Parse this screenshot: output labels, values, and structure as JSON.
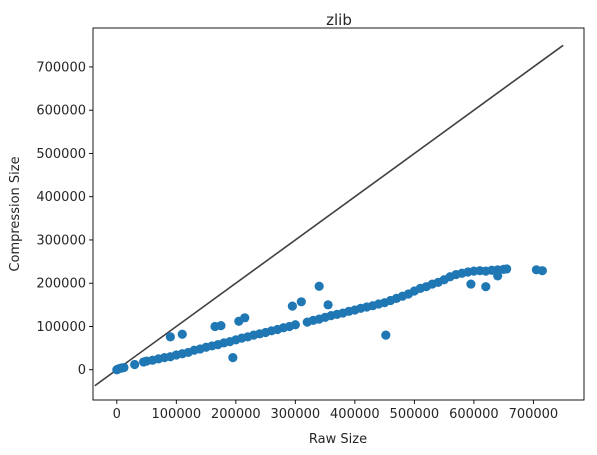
{
  "chart_data": {
    "type": "scatter",
    "title": "zlib",
    "xlabel": "Raw Size",
    "ylabel": "Compression Size",
    "xlim": [
      -40000,
      785000
    ],
    "ylim": [
      -70000,
      790000
    ],
    "xticks": [
      0,
      100000,
      200000,
      300000,
      400000,
      500000,
      600000,
      700000
    ],
    "yticks": [
      0,
      100000,
      200000,
      300000,
      400000,
      500000,
      600000,
      700000
    ],
    "xtick_labels": [
      "0",
      "100000",
      "200000",
      "300000",
      "400000",
      "500000",
      "600000",
      "700000"
    ],
    "ytick_labels": [
      "0",
      "100000",
      "200000",
      "300000",
      "400000",
      "500000",
      "600000",
      "700000"
    ],
    "grid": false,
    "point_color": "#1f77b4",
    "line_color": "#404040",
    "reference_line": {
      "x": [
        -37000,
        750000
      ],
      "y": [
        -37000,
        750000
      ]
    },
    "series": [
      {
        "points": [
          [
            0,
            0
          ],
          [
            2000,
            1500
          ],
          [
            5000,
            3000
          ],
          [
            8000,
            4000
          ],
          [
            12000,
            5000
          ],
          [
            30000,
            12000
          ],
          [
            45000,
            18000
          ],
          [
            50000,
            20000
          ],
          [
            60000,
            22000
          ],
          [
            70000,
            25000
          ],
          [
            80000,
            28000
          ],
          [
            90000,
            30000
          ],
          [
            100000,
            34000
          ],
          [
            110000,
            37000
          ],
          [
            120000,
            40000
          ],
          [
            90000,
            76000
          ],
          [
            110000,
            82000
          ],
          [
            130000,
            45000
          ],
          [
            140000,
            48000
          ],
          [
            150000,
            52000
          ],
          [
            160000,
            55000
          ],
          [
            170000,
            58000
          ],
          [
            180000,
            62000
          ],
          [
            190000,
            65000
          ],
          [
            200000,
            69000
          ],
          [
            165000,
            100000
          ],
          [
            175000,
            102000
          ],
          [
            205000,
            112000
          ],
          [
            215000,
            120000
          ],
          [
            195000,
            28000
          ],
          [
            210000,
            73000
          ],
          [
            220000,
            76000
          ],
          [
            230000,
            80000
          ],
          [
            240000,
            83000
          ],
          [
            250000,
            86000
          ],
          [
            260000,
            90000
          ],
          [
            270000,
            93000
          ],
          [
            280000,
            97000
          ],
          [
            290000,
            100000
          ],
          [
            300000,
            104000
          ],
          [
            295000,
            147000
          ],
          [
            310000,
            157000
          ],
          [
            320000,
            110000
          ],
          [
            330000,
            114000
          ],
          [
            340000,
            117000
          ],
          [
            350000,
            121000
          ],
          [
            355000,
            150000
          ],
          [
            340000,
            193000
          ],
          [
            360000,
            125000
          ],
          [
            370000,
            128000
          ],
          [
            380000,
            131000
          ],
          [
            390000,
            135000
          ],
          [
            400000,
            138000
          ],
          [
            410000,
            142000
          ],
          [
            420000,
            145000
          ],
          [
            430000,
            148000
          ],
          [
            440000,
            152000
          ],
          [
            450000,
            155000
          ],
          [
            452000,
            80000
          ],
          [
            460000,
            160000
          ],
          [
            470000,
            165000
          ],
          [
            480000,
            170000
          ],
          [
            490000,
            175000
          ],
          [
            500000,
            182000
          ],
          [
            510000,
            188000
          ],
          [
            520000,
            192000
          ],
          [
            530000,
            198000
          ],
          [
            540000,
            202000
          ],
          [
            550000,
            208000
          ],
          [
            560000,
            215000
          ],
          [
            570000,
            220000
          ],
          [
            580000,
            223000
          ],
          [
            590000,
            226000
          ],
          [
            600000,
            228000
          ],
          [
            610000,
            229000
          ],
          [
            620000,
            228000
          ],
          [
            630000,
            230000
          ],
          [
            640000,
            231000
          ],
          [
            650000,
            232000
          ],
          [
            655000,
            233000
          ],
          [
            595000,
            198000
          ],
          [
            620000,
            192000
          ],
          [
            640000,
            217000
          ],
          [
            705000,
            231000
          ],
          [
            715000,
            229000
          ]
        ]
      }
    ]
  }
}
